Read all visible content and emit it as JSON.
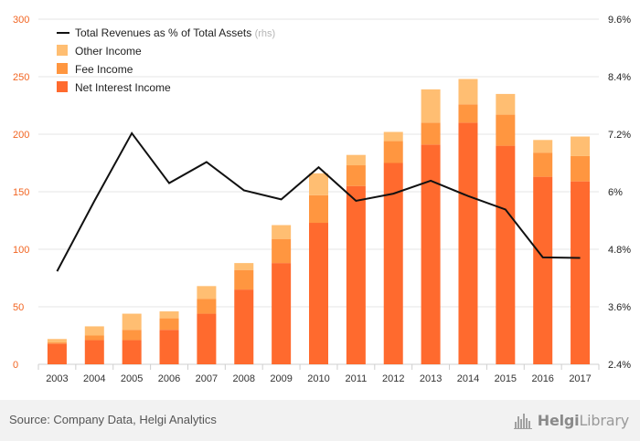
{
  "chart_data": {
    "type": "bar",
    "stacked": true,
    "categories": [
      "2003",
      "2004",
      "2005",
      "2006",
      "2007",
      "2008",
      "2009",
      "2010",
      "2011",
      "2012",
      "2013",
      "2014",
      "2015",
      "2016",
      "2017"
    ],
    "series": [
      {
        "name": "Net Interest Income",
        "color": "#ff6a2e",
        "values": [
          18,
          21,
          21,
          30,
          44,
          65,
          88,
          123,
          155,
          175,
          191,
          210,
          190,
          163,
          159
        ]
      },
      {
        "name": "Fee Income",
        "color": "#ff9640",
        "values": [
          1,
          4,
          9,
          10,
          13,
          17,
          21,
          24,
          18,
          19,
          19,
          16,
          27,
          21,
          22
        ]
      },
      {
        "name": "Other Income",
        "color": "#ffbe72",
        "values": [
          3,
          8,
          14,
          6,
          11,
          6,
          12,
          19,
          9,
          8,
          29,
          22,
          18,
          11,
          17
        ]
      }
    ],
    "line_series": {
      "name": "Total Revenues as % of Total Assets",
      "name_suffix": "(rhs)",
      "color": "#111111",
      "values": [
        4.34,
        5.81,
        7.22,
        6.18,
        6.62,
        6.03,
        5.84,
        6.51,
        5.81,
        5.96,
        6.23,
        5.91,
        5.63,
        4.63,
        4.62
      ]
    },
    "y_left": {
      "min": 0,
      "max": 300,
      "ticks": [
        "0",
        "50",
        "100",
        "150",
        "200",
        "250",
        "300"
      ],
      "color": "#f26522"
    },
    "y_right": {
      "min": 2.4,
      "max": 9.6,
      "ticks": [
        "2.4%",
        "3.6%",
        "4.8%",
        "6%",
        "7.2%",
        "8.4%",
        "9.6%"
      ]
    },
    "title": "",
    "xlabel": "",
    "ylabel": "",
    "grid": true,
    "legend_position": "top-left"
  },
  "footer": {
    "source": "Source: Company Data, Helgi Analytics",
    "brand_prefix": "Helgi",
    "brand_suffix": "Library"
  }
}
